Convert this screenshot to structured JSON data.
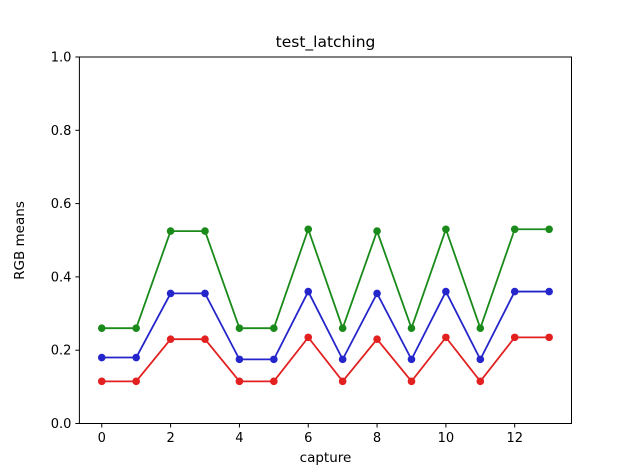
{
  "chart_data": {
    "type": "line",
    "title": "test_latching",
    "xlabel": "capture",
    "ylabel": "RGB means",
    "x": [
      0,
      1,
      2,
      3,
      4,
      5,
      6,
      7,
      8,
      9,
      10,
      11,
      12,
      13
    ],
    "series": [
      {
        "name": "red",
        "color": "#e22020",
        "values": [
          0.115,
          0.115,
          0.23,
          0.23,
          0.115,
          0.115,
          0.235,
          0.115,
          0.23,
          0.115,
          0.235,
          0.115,
          0.235,
          0.235
        ]
      },
      {
        "name": "blue",
        "color": "#2525cc",
        "values": [
          0.18,
          0.18,
          0.355,
          0.355,
          0.175,
          0.175,
          0.36,
          0.175,
          0.355,
          0.175,
          0.36,
          0.175,
          0.36,
          0.36
        ]
      },
      {
        "name": "green",
        "color": "#1a8a1a",
        "values": [
          0.26,
          0.26,
          0.525,
          0.525,
          0.26,
          0.26,
          0.53,
          0.26,
          0.525,
          0.26,
          0.53,
          0.26,
          0.53,
          0.53
        ]
      }
    ],
    "xlim": [
      -0.65,
      13.65
    ],
    "ylim": [
      0.0,
      1.0
    ],
    "xticks": [
      0,
      2,
      4,
      6,
      8,
      10,
      12
    ],
    "yticks": [
      0.0,
      0.2,
      0.4,
      0.6,
      0.8,
      1.0
    ],
    "grid": false,
    "legend": null,
    "marker": "circle",
    "axes_color": "#000000",
    "background_color": "#ffffff"
  }
}
